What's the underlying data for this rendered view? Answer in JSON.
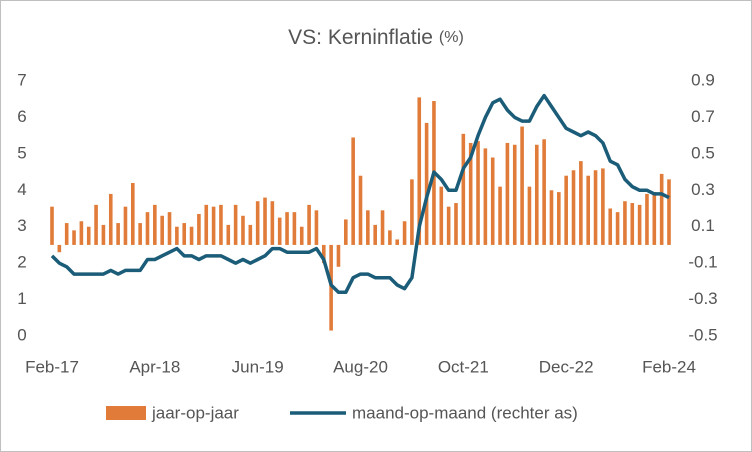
{
  "chart_data": {
    "type": "bar_line",
    "title": "VS: Kerninflatie",
    "title_unit": "(%)",
    "categories": [
      "Feb-17",
      null,
      null,
      null,
      null,
      null,
      null,
      null,
      null,
      null,
      null,
      null,
      null,
      null,
      "Apr-18",
      null,
      null,
      null,
      null,
      null,
      null,
      null,
      null,
      null,
      null,
      null,
      null,
      null,
      "Jun-19",
      null,
      null,
      null,
      null,
      null,
      null,
      null,
      null,
      null,
      null,
      null,
      null,
      null,
      "Aug-20",
      null,
      null,
      null,
      null,
      null,
      null,
      null,
      null,
      null,
      null,
      null,
      null,
      null,
      "Oct-21",
      null,
      null,
      null,
      null,
      null,
      null,
      null,
      null,
      null,
      null,
      null,
      null,
      null,
      "Dec-22",
      null,
      null,
      null,
      null,
      null,
      null,
      null,
      null,
      null,
      null,
      null,
      null,
      null,
      "Feb-24"
    ],
    "series": [
      {
        "name": "jaar-op-jaar",
        "kind": "bar",
        "axis": "y2",
        "color": "#e07b39",
        "values": [
          0.21,
          -0.04,
          0.12,
          0.08,
          0.13,
          0.1,
          0.22,
          0.11,
          0.28,
          0.12,
          0.21,
          0.34,
          0.12,
          0.18,
          0.22,
          0.16,
          0.18,
          0.1,
          0.12,
          0.1,
          0.17,
          0.22,
          0.21,
          0.22,
          0.11,
          0.22,
          0.16,
          0.11,
          0.24,
          0.26,
          0.24,
          0.15,
          0.18,
          0.18,
          0.1,
          0.22,
          0.19,
          -0.1,
          -0.47,
          -0.12,
          0.14,
          0.59,
          0.38,
          0.19,
          0.11,
          0.19,
          0.08,
          0.03,
          0.13,
          0.36,
          0.81,
          0.67,
          0.79,
          0.32,
          0.21,
          0.23,
          0.61,
          0.56,
          0.57,
          0.53,
          0.48,
          0.32,
          0.56,
          0.55,
          0.65,
          0.32,
          0.55,
          0.58,
          0.3,
          0.29,
          0.38,
          0.41,
          0.46,
          0.38,
          0.41,
          0.42,
          0.2,
          0.18,
          0.24,
          0.23,
          0.22,
          0.28,
          0.29,
          0.39,
          0.36
        ]
      },
      {
        "name": "maand-op-maand (rechter as)",
        "kind": "line",
        "axis": "y",
        "color": "#1b5c78",
        "values": [
          2.2,
          2.0,
          1.9,
          1.7,
          1.7,
          1.7,
          1.7,
          1.7,
          1.8,
          1.7,
          1.8,
          1.8,
          1.8,
          2.1,
          2.1,
          2.2,
          2.3,
          2.4,
          2.2,
          2.2,
          2.1,
          2.2,
          2.2,
          2.2,
          2.1,
          2.0,
          2.1,
          2.0,
          2.1,
          2.2,
          2.4,
          2.4,
          2.3,
          2.3,
          2.3,
          2.3,
          2.4,
          2.1,
          1.4,
          1.2,
          1.2,
          1.6,
          1.7,
          1.7,
          1.6,
          1.6,
          1.6,
          1.4,
          1.3,
          1.6,
          3.0,
          3.8,
          4.5,
          4.3,
          4.0,
          4.0,
          4.6,
          4.9,
          5.5,
          6.0,
          6.4,
          6.5,
          6.2,
          6.0,
          5.9,
          5.9,
          6.3,
          6.6,
          6.3,
          6.0,
          5.7,
          5.6,
          5.5,
          5.6,
          5.5,
          5.3,
          4.8,
          4.7,
          4.3,
          4.1,
          4.0,
          4.0,
          3.9,
          3.9,
          3.8
        ]
      }
    ],
    "ylim": [
      0,
      7
    ],
    "yticks": [
      0,
      1,
      2,
      3,
      4,
      5,
      6,
      7
    ],
    "y2lim": [
      -0.5,
      0.9
    ],
    "y2ticks": [
      -0.5,
      -0.3,
      -0.1,
      0.1,
      0.3,
      0.5,
      0.7,
      0.9
    ],
    "legend": "bottom",
    "grid": false
  }
}
